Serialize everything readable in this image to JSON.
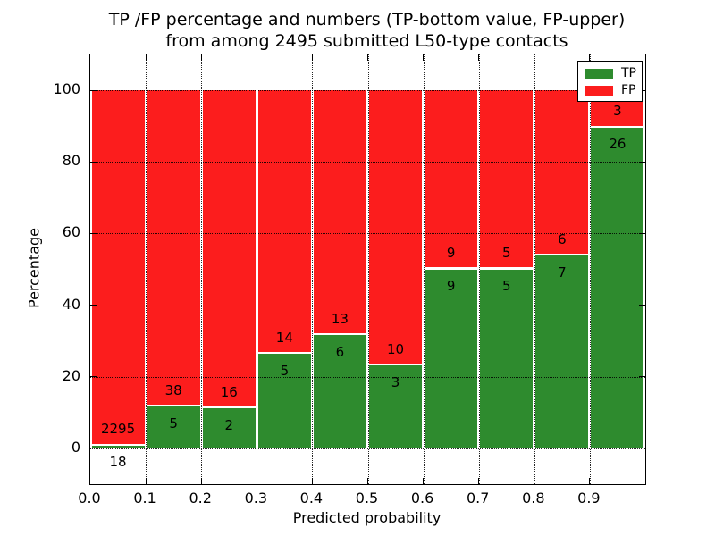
{
  "chart_data": {
    "type": "bar",
    "stacked": true,
    "title_line1": "TP /FP percentage and numbers (TP-bottom value, FP-upper)",
    "title_line2": "from among 2495 submitted L50-type contacts",
    "xlabel": "Predicted probability",
    "ylabel": "Percentage",
    "total_contacts": 2495,
    "xlim": [
      0.0,
      1.0
    ],
    "ylim": [
      -10,
      110
    ],
    "x_tick_labels": [
      "0.0",
      "0.1",
      "0.2",
      "0.3",
      "0.4",
      "0.5",
      "0.6",
      "0.7",
      "0.8",
      "0.9"
    ],
    "y_tick_labels": [
      "0",
      "20",
      "40",
      "60",
      "80",
      "100"
    ],
    "y_tick_values": [
      0,
      20,
      40,
      60,
      80,
      100
    ],
    "grid": true,
    "legend_position": "upper right",
    "legend": [
      {
        "label": "TP",
        "color": "#2e8b2e"
      },
      {
        "label": "FP",
        "color": "#fc1d1d"
      }
    ],
    "colors": {
      "tp": "#2e8b2e",
      "fp": "#fc1d1d",
      "bar_edge": "#ffffff",
      "text": "#000000"
    },
    "bin_width": 0.1,
    "bars": [
      {
        "bin_start": 0.0,
        "tp": 18,
        "fp": 2295
      },
      {
        "bin_start": 0.1,
        "tp": 5,
        "fp": 38
      },
      {
        "bin_start": 0.2,
        "tp": 2,
        "fp": 16
      },
      {
        "bin_start": 0.3,
        "tp": 5,
        "fp": 14
      },
      {
        "bin_start": 0.4,
        "tp": 6,
        "fp": 13
      },
      {
        "bin_start": 0.5,
        "tp": 3,
        "fp": 10
      },
      {
        "bin_start": 0.6,
        "tp": 9,
        "fp": 9
      },
      {
        "bin_start": 0.7,
        "tp": 5,
        "fp": 5
      },
      {
        "bin_start": 0.8,
        "tp": 7,
        "fp": 6
      },
      {
        "bin_start": 0.9,
        "tp": 26,
        "fp": 3
      }
    ]
  }
}
